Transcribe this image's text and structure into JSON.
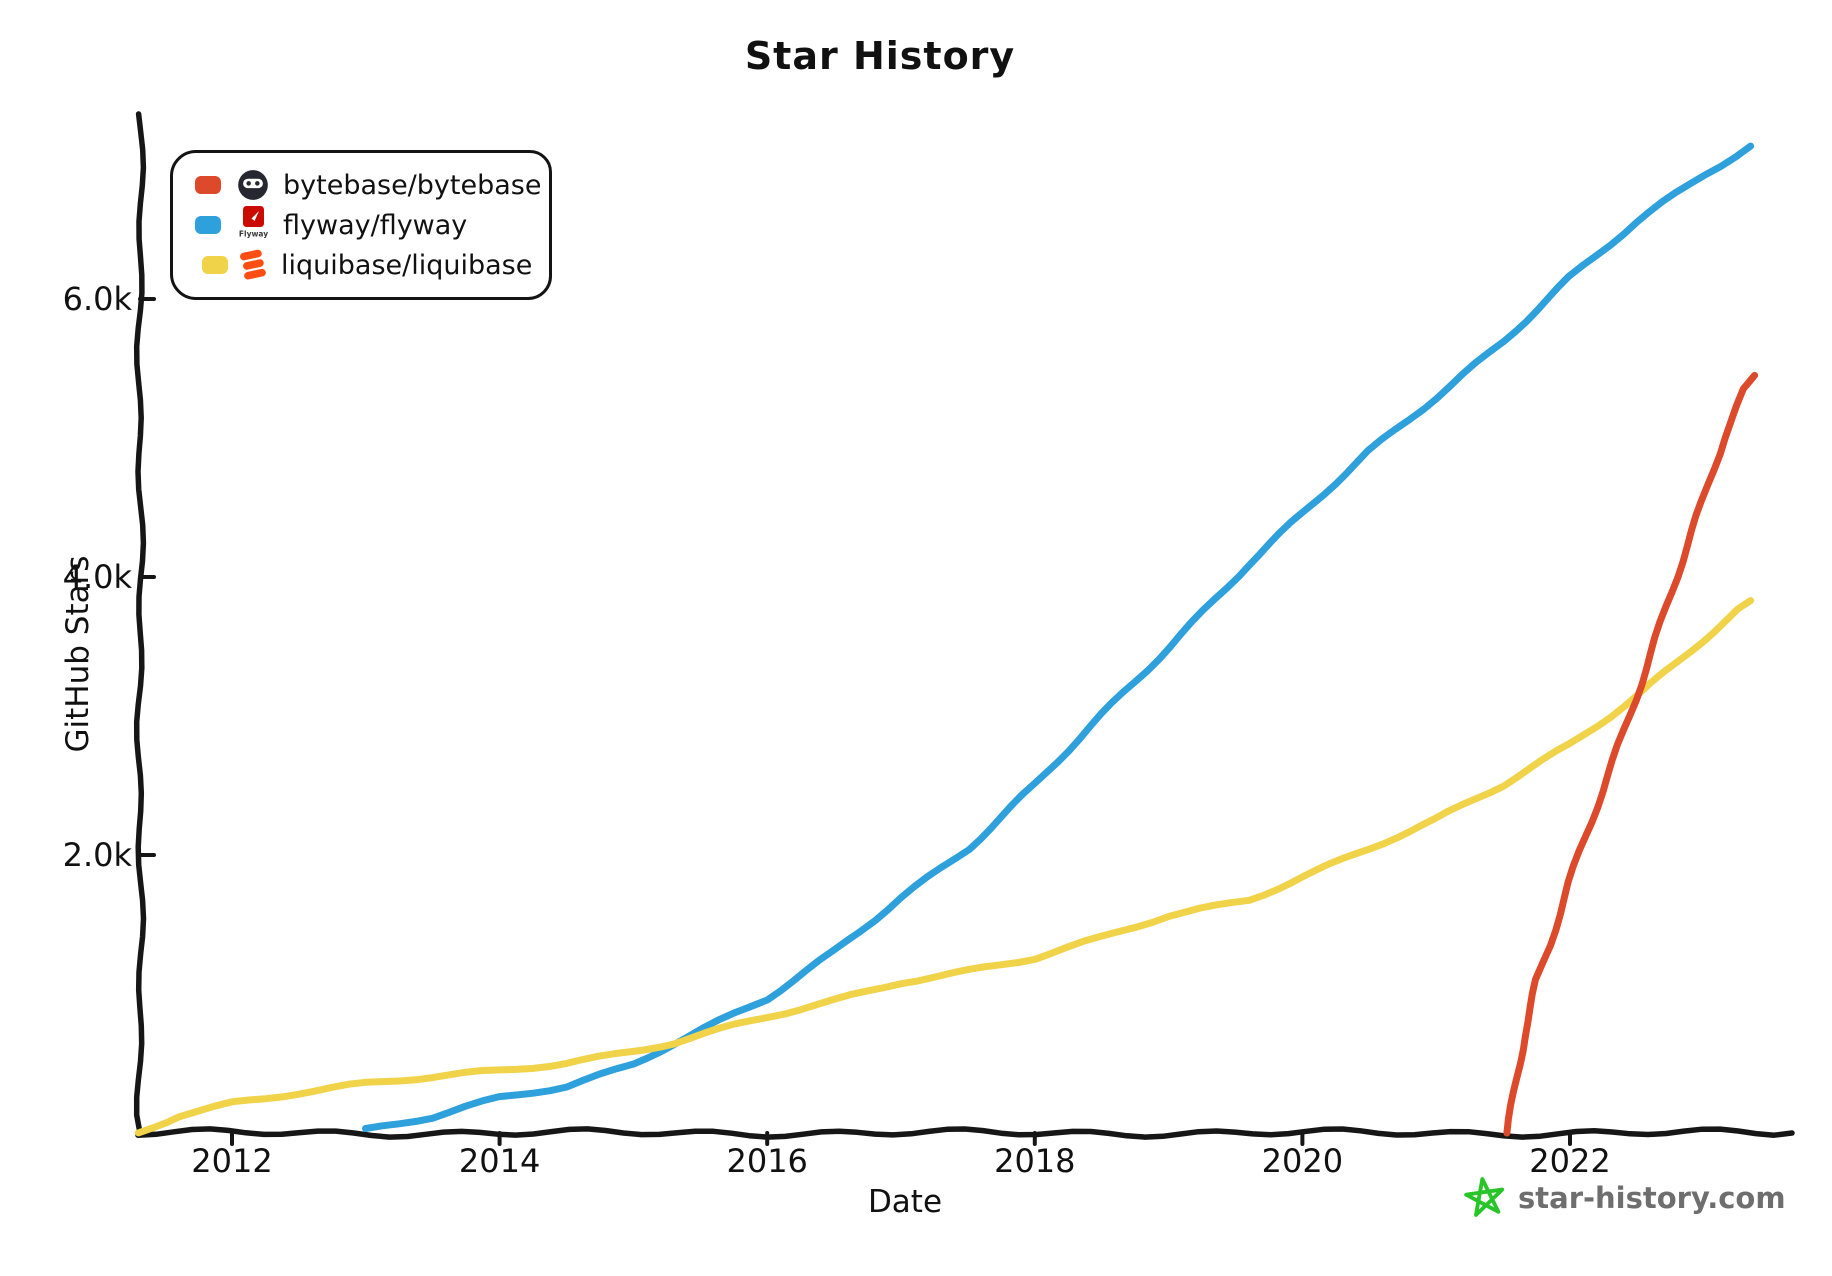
{
  "title": "Star History",
  "legend": {
    "items": [
      {
        "label": "bytebase/bytebase",
        "swatch_color": "#dc4a2b",
        "icon": "bytebase-logo",
        "icon_color": "#262730"
      },
      {
        "label": "flyway/flyway",
        "swatch_color": "#2ea0dc",
        "icon": "flyway-logo",
        "icon_color": "#cc0b00",
        "icon_caption": "Flyway"
      },
      {
        "label": "liquibase/liquibase",
        "swatch_color": "#f0d349",
        "icon": "liquibase-logo",
        "icon_color": "#ff4e14"
      }
    ]
  },
  "watermark": {
    "text": "star-history.com",
    "star_color": "#27c527",
    "text_color": "#6e6e6e"
  },
  "chart_data": {
    "type": "line",
    "title": "Star History",
    "xlabel": "Date",
    "ylabel": "GitHub Stars",
    "grid": false,
    "legend_position": "top-left",
    "x_axis": {
      "unit": "year",
      "range": [
        2011.3,
        2023.65
      ],
      "ticks": [
        2012,
        2014,
        2016,
        2018,
        2020,
        2022
      ]
    },
    "y_axis": {
      "unit": "GitHub stars",
      "range": [
        0,
        7320
      ],
      "ticks": [
        {
          "value": 2000,
          "label": "2.0k"
        },
        {
          "value": 4000,
          "label": "4.0k"
        },
        {
          "value": 6000,
          "label": "6.0k"
        }
      ]
    },
    "series": [
      {
        "name": "bytebase/bytebase",
        "color": "#dc4a2b",
        "final_value": 5450,
        "points": [
          [
            2021.53,
            0
          ],
          [
            2021.58,
            300
          ],
          [
            2021.65,
            700
          ],
          [
            2021.75,
            1100
          ],
          [
            2021.85,
            1350
          ],
          [
            2022.0,
            1800
          ],
          [
            2022.2,
            2350
          ],
          [
            2022.4,
            2900
          ],
          [
            2022.6,
            3450
          ],
          [
            2022.8,
            4000
          ],
          [
            2023.0,
            4550
          ],
          [
            2023.15,
            5000
          ],
          [
            2023.3,
            5350
          ],
          [
            2023.38,
            5450
          ]
        ]
      },
      {
        "name": "flyway/flyway",
        "color": "#2ea0dc",
        "final_value": 7100,
        "points": [
          [
            2013.0,
            20
          ],
          [
            2013.5,
            110
          ],
          [
            2014.0,
            250
          ],
          [
            2014.5,
            340
          ],
          [
            2015.0,
            500
          ],
          [
            2015.3,
            650
          ],
          [
            2016.0,
            960
          ],
          [
            2016.5,
            1300
          ],
          [
            2017.0,
            1700
          ],
          [
            2017.5,
            2050
          ],
          [
            2018.0,
            2500
          ],
          [
            2018.5,
            3000
          ],
          [
            2019.0,
            3500
          ],
          [
            2019.6,
            4100
          ],
          [
            2020.0,
            4450
          ],
          [
            2020.5,
            4900
          ],
          [
            2021.0,
            5300
          ],
          [
            2021.5,
            5700
          ],
          [
            2022.0,
            6150
          ],
          [
            2022.5,
            6550
          ],
          [
            2023.0,
            6900
          ],
          [
            2023.35,
            7100
          ]
        ]
      },
      {
        "name": "liquibase/liquibase",
        "color": "#f0d349",
        "final_value": 3830,
        "points": [
          [
            2011.3,
            0
          ],
          [
            2011.6,
            130
          ],
          [
            2012.0,
            220
          ],
          [
            2012.5,
            290
          ],
          [
            2013.0,
            350
          ],
          [
            2013.5,
            400
          ],
          [
            2014.0,
            450
          ],
          [
            2014.5,
            510
          ],
          [
            2015.0,
            590
          ],
          [
            2015.3,
            650
          ],
          [
            2016.0,
            830
          ],
          [
            2016.5,
            950
          ],
          [
            2017.0,
            1090
          ],
          [
            2017.5,
            1170
          ],
          [
            2018.0,
            1260
          ],
          [
            2018.5,
            1400
          ],
          [
            2019.0,
            1560
          ],
          [
            2019.6,
            1680
          ],
          [
            2020.0,
            1850
          ],
          [
            2020.5,
            2050
          ],
          [
            2021.0,
            2250
          ],
          [
            2021.5,
            2500
          ],
          [
            2022.0,
            2800
          ],
          [
            2022.5,
            3150
          ],
          [
            2023.0,
            3550
          ],
          [
            2023.35,
            3830
          ]
        ]
      }
    ]
  }
}
